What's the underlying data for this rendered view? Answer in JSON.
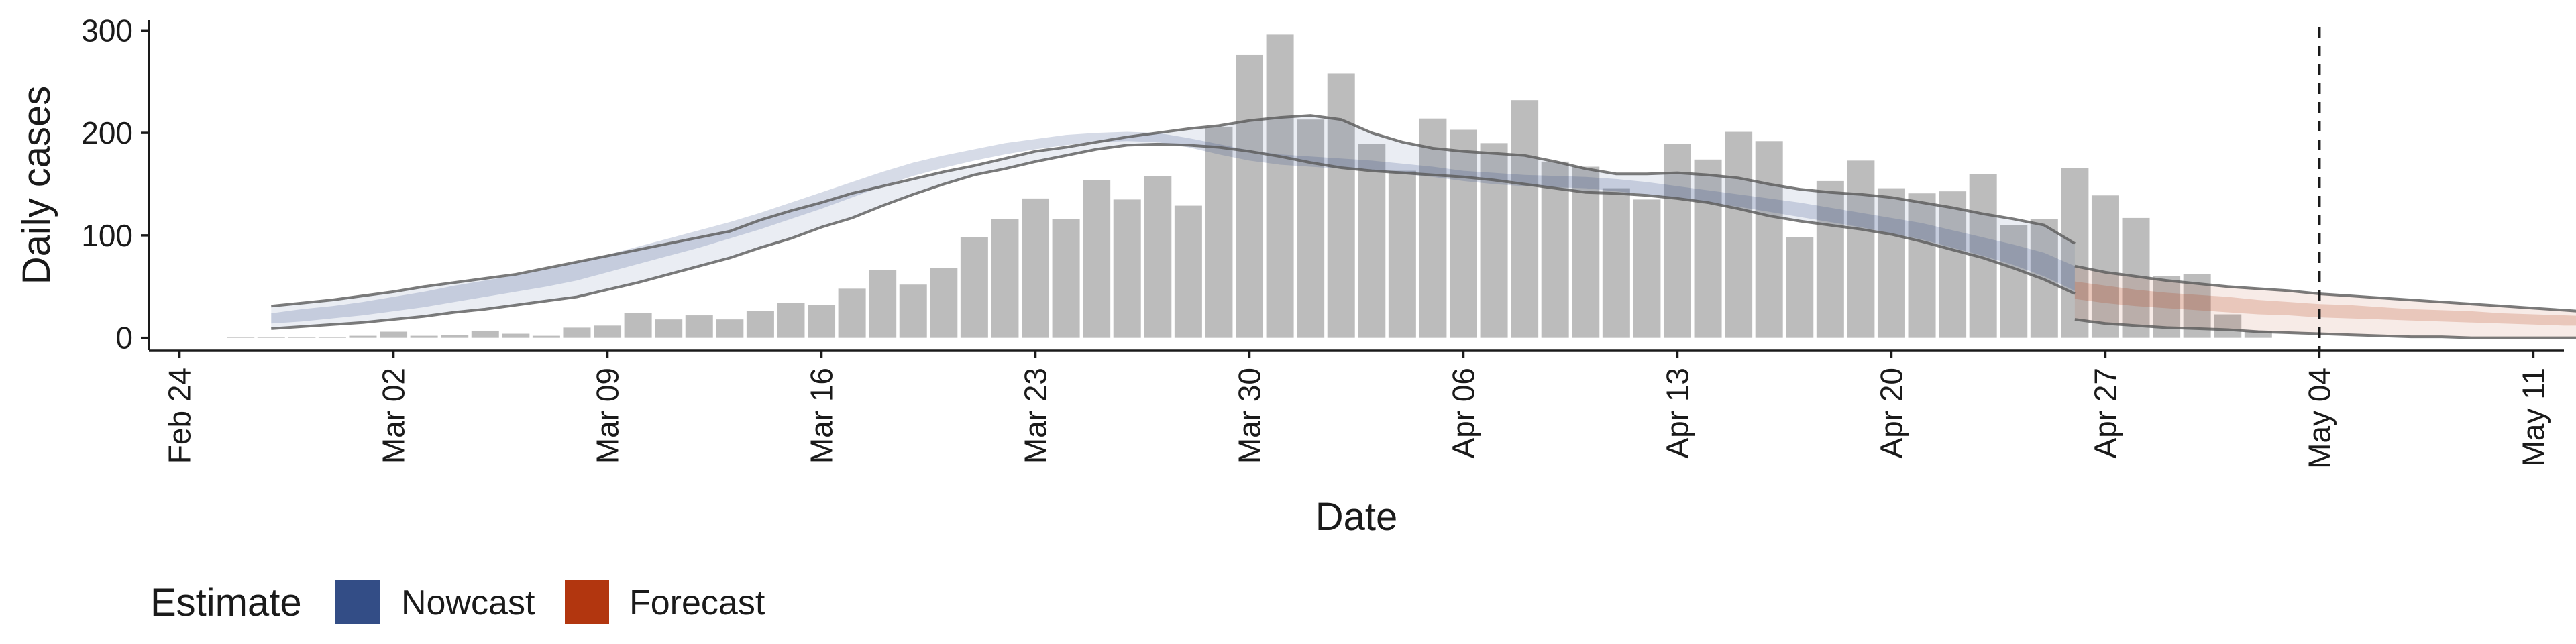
{
  "chart_data": {
    "type": "bar",
    "xlabel": "Date",
    "ylabel": "Daily cases",
    "x_domain": [
      "2020-02-23",
      "2020-05-12"
    ],
    "ylim": [
      -12,
      310
    ],
    "y_ticks": [
      0,
      100,
      200,
      300
    ],
    "x_ticks": [
      {
        "date": "2020-02-24",
        "label": "Feb 24"
      },
      {
        "date": "2020-03-02",
        "label": "Mar 02"
      },
      {
        "date": "2020-03-09",
        "label": "Mar 09"
      },
      {
        "date": "2020-03-16",
        "label": "Mar 16"
      },
      {
        "date": "2020-03-23",
        "label": "Mar 23"
      },
      {
        "date": "2020-03-30",
        "label": "Mar 30"
      },
      {
        "date": "2020-04-06",
        "label": "Apr 06"
      },
      {
        "date": "2020-04-13",
        "label": "Apr 13"
      },
      {
        "date": "2020-04-20",
        "label": "Apr 20"
      },
      {
        "date": "2020-04-27",
        "label": "Apr 27"
      },
      {
        "date": "2020-05-04",
        "label": "May 04"
      },
      {
        "date": "2020-05-11",
        "label": "May 11"
      }
    ],
    "bar_dates_start": "2020-02-26",
    "bars": [
      1,
      1,
      1,
      1,
      2,
      6,
      2,
      3,
      7,
      4,
      2,
      10,
      12,
      24,
      18,
      22,
      18,
      26,
      34,
      32,
      48,
      66,
      52,
      68,
      98,
      116,
      136,
      116,
      154,
      135,
      158,
      129,
      206,
      276,
      296,
      213,
      258,
      189,
      163,
      214,
      203,
      190,
      232,
      172,
      167,
      146,
      135,
      189,
      174,
      201,
      192,
      98,
      153,
      173,
      146,
      141,
      143,
      160,
      110,
      116,
      166,
      139,
      117,
      60,
      62,
      23,
      7
    ],
    "forecast_date": "2020-05-04",
    "series": [
      {
        "name": "Nowcast",
        "color": "#334d86",
        "dates_start": "2020-02-27",
        "median": [
          19,
          22,
          25,
          29,
          33,
          38,
          43,
          48,
          53,
          58,
          64,
          72,
          80,
          88,
          96,
          104,
          113,
          123,
          133,
          144,
          155,
          165,
          172,
          178,
          184,
          189,
          193,
          196,
          197,
          196,
          191,
          184,
          178,
          174,
          172,
          170,
          168,
          165,
          162,
          158,
          155,
          153,
          152,
          151,
          149,
          146,
          142,
          138,
          134,
          129,
          125,
          120,
          115,
          110,
          104,
          97,
          90,
          82,
          72,
          58
        ],
        "lower50": [
          14,
          16,
          19,
          22,
          26,
          30,
          35,
          40,
          45,
          50,
          56,
          64,
          72,
          80,
          88,
          97,
          106,
          116,
          126,
          137,
          148,
          158,
          166,
          173,
          179,
          184,
          188,
          191,
          192,
          191,
          186,
          179,
          173,
          169,
          167,
          165,
          163,
          160,
          157,
          153,
          150,
          148,
          147,
          146,
          143,
          140,
          136,
          132,
          128,
          123,
          118,
          113,
          108,
          102,
          96,
          88,
          80,
          71,
          60,
          46
        ],
        "upper50": [
          24,
          28,
          31,
          35,
          40,
          45,
          51,
          56,
          61,
          67,
          74,
          81,
          89,
          97,
          105,
          113,
          122,
          132,
          142,
          152,
          162,
          171,
          178,
          184,
          190,
          194,
          198,
          200,
          201,
          200,
          195,
          189,
          183,
          179,
          177,
          175,
          173,
          170,
          167,
          163,
          161,
          159,
          158,
          157,
          155,
          152,
          148,
          144,
          140,
          136,
          132,
          127,
          122,
          117,
          112,
          105,
          98,
          91,
          83,
          70
        ],
        "lower90": [
          9,
          11,
          13,
          15,
          18,
          21,
          25,
          28,
          32,
          36,
          40,
          47,
          54,
          62,
          70,
          78,
          88,
          97,
          108,
          117,
          129,
          140,
          150,
          159,
          165,
          172,
          178,
          184,
          188,
          189,
          188,
          186,
          182,
          177,
          171,
          166,
          163,
          161,
          159,
          157,
          154,
          150,
          146,
          142,
          141,
          139,
          136,
          132,
          126,
          119,
          114,
          110,
          106,
          101,
          94,
          86,
          78,
          68,
          57,
          43
        ],
        "upper90": [
          31,
          34,
          37,
          41,
          45,
          50,
          54,
          58,
          62,
          68,
          74,
          80,
          86,
          92,
          98,
          104,
          115,
          124,
          132,
          141,
          148,
          155,
          162,
          168,
          175,
          182,
          186,
          191,
          196,
          200,
          204,
          207,
          212,
          215,
          217,
          213,
          200,
          191,
          185,
          182,
          180,
          178,
          172,
          165,
          160,
          160,
          161,
          159,
          156,
          150,
          145,
          142,
          140,
          137,
          132,
          127,
          121,
          116,
          110,
          92
        ]
      },
      {
        "name": "Forecast",
        "color": "#b2360f",
        "dates_start": "2020-04-26",
        "median": [
          46,
          42,
          39,
          36,
          34,
          32,
          30,
          28,
          26,
          25,
          24,
          22,
          21,
          20,
          19,
          18,
          17,
          16,
          15
        ],
        "lower50": [
          38,
          34,
          31,
          29,
          27,
          25,
          23,
          22,
          20,
          19,
          18,
          17,
          16,
          15,
          14,
          13,
          12,
          12,
          11
        ],
        "upper50": [
          55,
          51,
          47,
          44,
          42,
          40,
          37,
          35,
          33,
          32,
          30,
          28,
          27,
          26,
          24,
          23,
          22,
          21,
          20
        ],
        "lower90": [
          18,
          14,
          12,
          10,
          9,
          8,
          6,
          5,
          4,
          3,
          2,
          1,
          1,
          0,
          0,
          0,
          0,
          0,
          0
        ],
        "upper90": [
          70,
          64,
          60,
          56,
          53,
          50,
          48,
          46,
          43,
          41,
          39,
          37,
          35,
          33,
          31,
          29,
          27,
          25,
          24
        ]
      }
    ]
  },
  "legend": {
    "title": "Estimate",
    "items": [
      {
        "label": "Nowcast",
        "color": "#334d86"
      },
      {
        "label": "Forecast",
        "color": "#b2360f"
      }
    ]
  }
}
